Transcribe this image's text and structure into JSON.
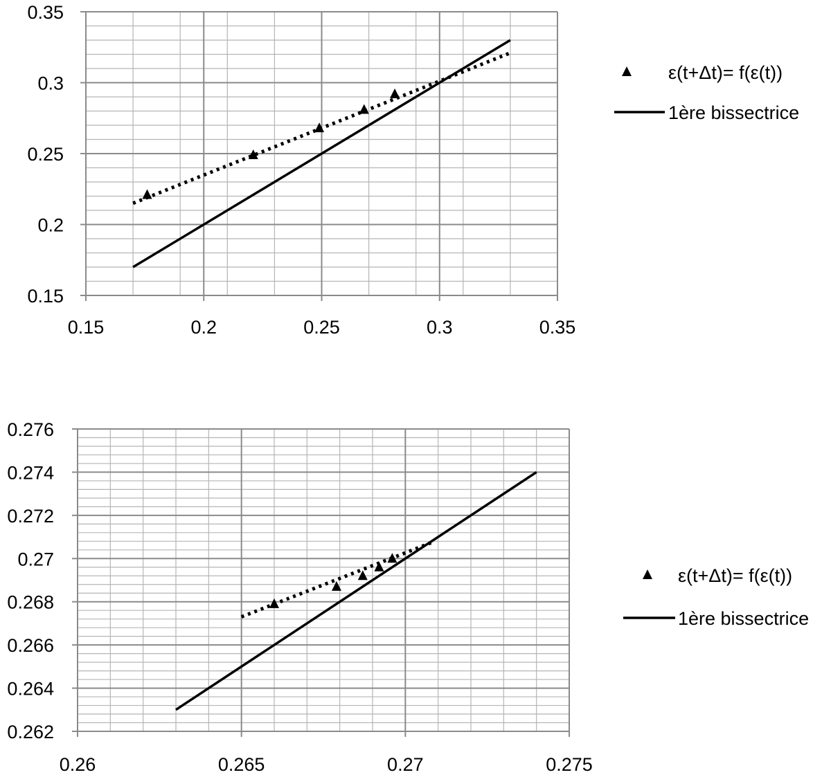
{
  "chart_data": [
    {
      "type": "scatter",
      "title": "",
      "xlabel": "",
      "ylabel": "",
      "xlim": [
        0.15,
        0.35
      ],
      "ylim": [
        0.15,
        0.35
      ],
      "x_ticks": [
        "0.15",
        "0.2",
        "0.25",
        "0.3",
        "0.35"
      ],
      "y_ticks": [
        "0.15",
        "0.2",
        "0.25",
        "0.3",
        "0.35"
      ],
      "grid": true,
      "legend_position": "right",
      "series": [
        {
          "name": "ε(t+Δt)= f(ε(t))",
          "kind": "scatter",
          "marker": "triangle",
          "x": [
            0.176,
            0.221,
            0.249,
            0.268,
            0.281
          ],
          "y": [
            0.221,
            0.249,
            0.268,
            0.281,
            0.292
          ]
        },
        {
          "name": "",
          "kind": "trendline",
          "style": "dotted",
          "x": [
            0.17,
            0.33
          ],
          "y": [
            0.215,
            0.321
          ]
        },
        {
          "name": "1ère bissectrice",
          "kind": "line",
          "style": "solid",
          "x": [
            0.17,
            0.33
          ],
          "y": [
            0.17,
            0.33
          ]
        }
      ]
    },
    {
      "type": "scatter",
      "title": "",
      "xlabel": "",
      "ylabel": "",
      "xlim": [
        0.26,
        0.275
      ],
      "ylim": [
        0.262,
        0.276
      ],
      "x_ticks": [
        "0.26",
        "0.265",
        "0.27",
        "0.275"
      ],
      "y_ticks": [
        "0.262",
        "0.264",
        "0.266",
        "0.268",
        "0.27",
        "0.272",
        "0.274",
        "0.276"
      ],
      "grid": true,
      "legend_position": "right",
      "series": [
        {
          "name": "ε(t+Δt)= f(ε(t))",
          "kind": "scatter",
          "marker": "triangle",
          "x": [
            0.266,
            0.2679,
            0.2687,
            0.2692,
            0.2696
          ],
          "y": [
            0.2679,
            0.2687,
            0.2692,
            0.2696,
            0.27
          ]
        },
        {
          "name": "",
          "kind": "trendline",
          "style": "dotted",
          "x": [
            0.265,
            0.2709
          ],
          "y": [
            0.2673,
            0.2708
          ]
        },
        {
          "name": "1ère bissectrice",
          "kind": "line",
          "style": "solid",
          "x": [
            0.263,
            0.274
          ],
          "y": [
            0.263,
            0.274
          ]
        }
      ]
    }
  ]
}
